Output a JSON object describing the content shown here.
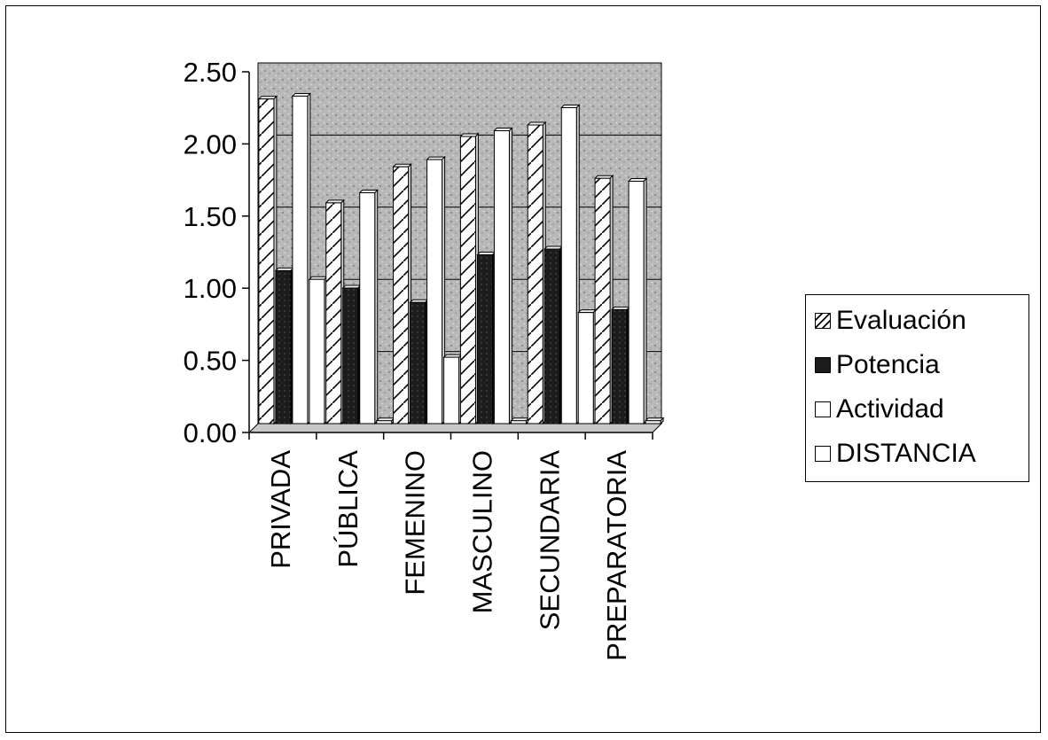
{
  "chart_data": {
    "type": "bar",
    "title": "",
    "xlabel": "",
    "ylabel": "",
    "categories": [
      "PRIVADA",
      "PÚBLICA",
      "FEMENINO",
      "MASCULINO",
      "SECUNDARIA",
      "PREPARATORIA"
    ],
    "series": [
      {
        "name": "Evaluación",
        "values": [
          2.25,
          1.53,
          1.78,
          1.99,
          2.07,
          1.7
        ]
      },
      {
        "name": "Potencia",
        "values": [
          1.06,
          0.94,
          0.84,
          1.17,
          1.21,
          0.79
        ]
      },
      {
        "name": "Actividad",
        "values": [
          2.27,
          1.6,
          1.83,
          2.03,
          2.19,
          1.68
        ]
      },
      {
        "name": "DISTANCIA",
        "values": [
          1.0,
          0.02,
          0.46,
          0.02,
          0.77,
          0.02
        ]
      }
    ],
    "yticks": [
      "0.00",
      "0.50",
      "1.00",
      "1.50",
      "2.00",
      "2.50"
    ],
    "ylim": [
      0,
      2.5
    ],
    "grid": true,
    "legend_position": "right",
    "colors": {
      "plot_area": "#b8b8b8",
      "Evaluación": "#ffffff",
      "Potencia": "#202020",
      "Actividad": "#ffffff",
      "DISTANCIA": "#ffffff"
    }
  }
}
